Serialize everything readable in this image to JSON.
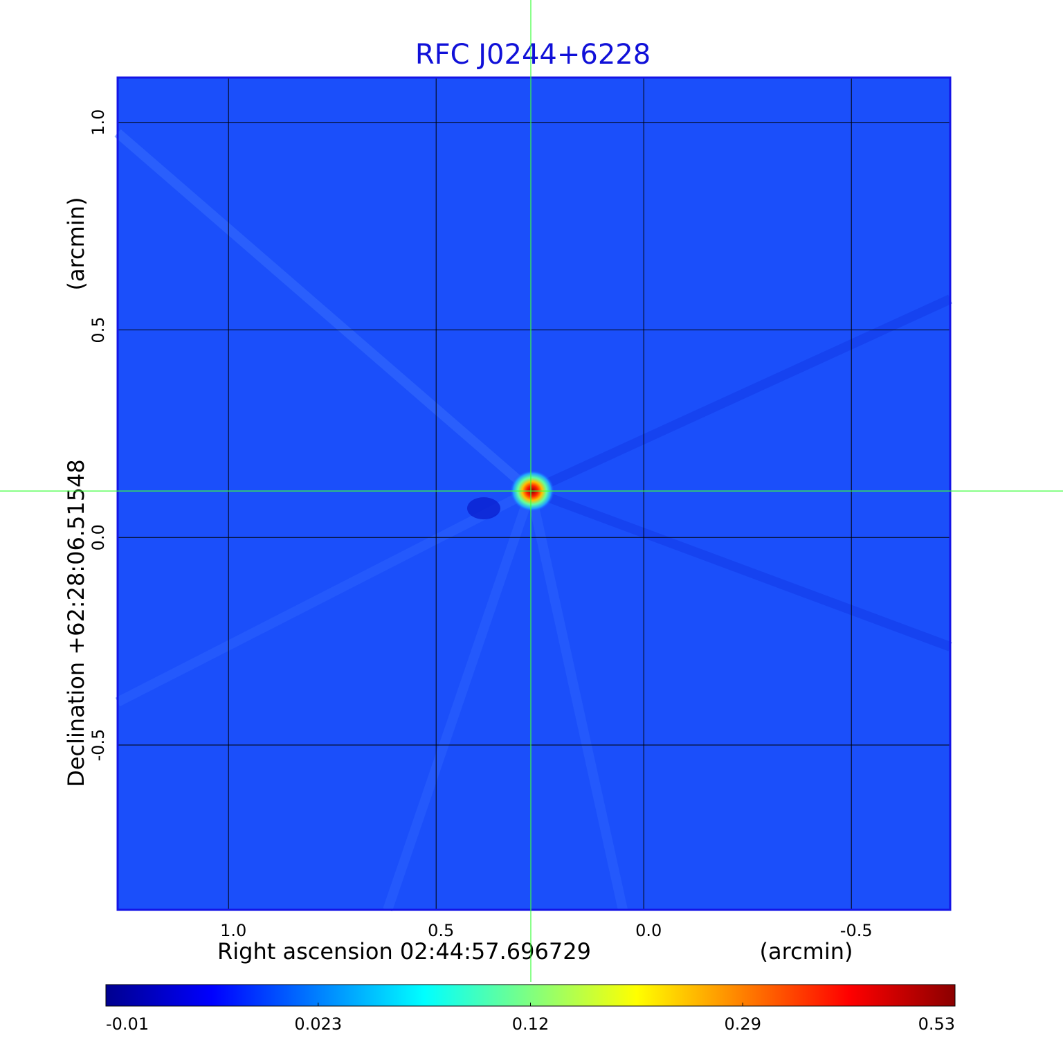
{
  "chart_data": {
    "type": "image-map",
    "title": "RFC J0244+6228",
    "x_label": "Right ascension  02:44:57.696729",
    "x_unit": "(arcmin)",
    "y_label": "Declination  +62:28:06.51548",
    "y_unit": "(arcmin)",
    "xlim": [
      1.267,
      -0.738
    ],
    "ylim": [
      -0.897,
      1.108
    ],
    "xticks": [
      {
        "value": 1,
        "label": "1.0"
      },
      {
        "value": 0.5,
        "label": "0.5"
      },
      {
        "value": 0,
        "label": "0.0"
      },
      {
        "value": -0.5,
        "label": "-0.5"
      }
    ],
    "yticks": [
      {
        "value": 1,
        "label": "1.0"
      },
      {
        "value": 0.5,
        "label": "0.5"
      },
      {
        "value": 0,
        "label": "0.0"
      },
      {
        "value": -0.5,
        "label": "-0.5"
      }
    ],
    "grid": true,
    "background_color": "#1b4ffa",
    "frame_color": "#1414e6",
    "title_color": "#1010d8",
    "crosshair": {
      "x": 0.272,
      "y": 0.112,
      "color": "#3cff3c"
    },
    "colorbar": {
      "ticks": [
        -0.01,
        0.023,
        0.12,
        0.29,
        0.53
      ],
      "colormap": [
        "#00008f",
        "#0000ff",
        "#0080ff",
        "#00ffff",
        "#80ff80",
        "#ffff00",
        "#ff8000",
        "#ff0000",
        "#8b0000"
      ]
    }
  }
}
